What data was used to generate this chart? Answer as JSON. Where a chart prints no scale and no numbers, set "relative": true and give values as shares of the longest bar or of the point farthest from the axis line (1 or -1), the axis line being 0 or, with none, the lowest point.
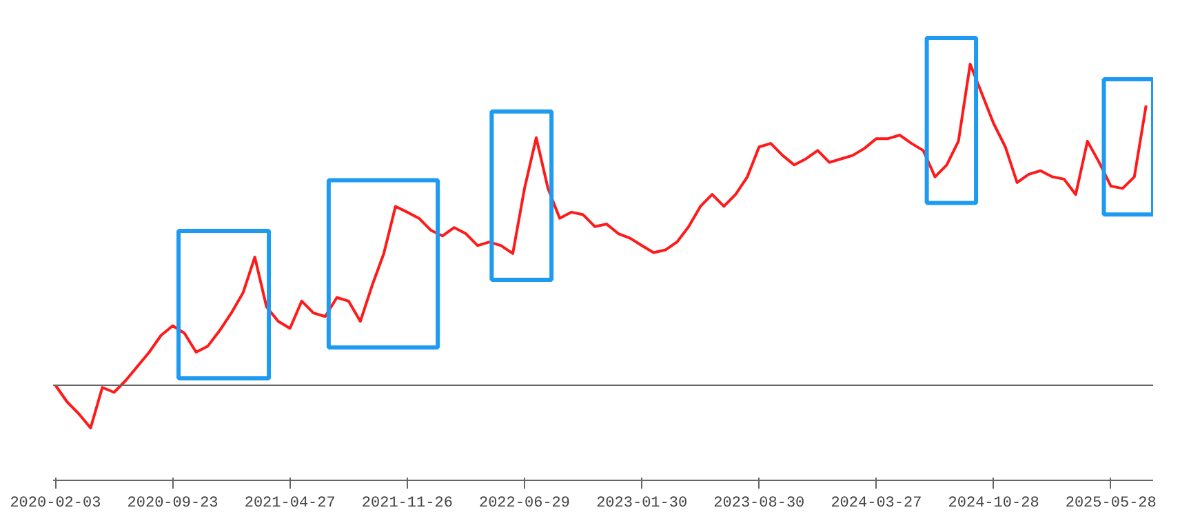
{
  "chart_data": {
    "type": "line",
    "relative": true,
    "categories": [
      "2020-02-03",
      null,
      null,
      null,
      null,
      null,
      null,
      null,
      null,
      null,
      "2020-09-23",
      null,
      null,
      null,
      null,
      null,
      null,
      null,
      null,
      null,
      "2021-04-27",
      null,
      null,
      null,
      null,
      null,
      null,
      null,
      null,
      null,
      "2021-11-26",
      null,
      null,
      null,
      null,
      null,
      null,
      null,
      null,
      null,
      "2022-06-29",
      null,
      null,
      null,
      null,
      null,
      null,
      null,
      null,
      null,
      "2023-01-30",
      null,
      null,
      null,
      null,
      null,
      null,
      null,
      null,
      null,
      "2023-08-30",
      null,
      null,
      null,
      null,
      null,
      null,
      null,
      null,
      null,
      "2024-03-27",
      null,
      null,
      null,
      null,
      null,
      null,
      null,
      null,
      null,
      "2024-10-28",
      null,
      null,
      null,
      null,
      null,
      null,
      null,
      null,
      null,
      "2025-05-28",
      null,
      null,
      null
    ],
    "series": [
      {
        "color": "#ff1a1a",
        "values": [
          0,
          -0.052,
          -0.089,
          -0.133,
          -0.007,
          -0.022,
          0.015,
          0.059,
          0.103,
          0.155,
          0.185,
          0.162,
          0.103,
          0.122,
          0.17,
          0.225,
          0.288,
          0.399,
          0.244,
          0.199,
          0.177,
          0.262,
          0.225,
          0.214,
          0.273,
          0.262,
          0.199,
          0.31,
          0.41,
          0.557,
          0.539,
          0.52,
          0.483,
          0.465,
          0.491,
          0.472,
          0.435,
          0.446,
          0.435,
          0.41,
          0.613,
          0.771,
          0.613,
          0.52,
          0.539,
          0.531,
          0.494,
          0.502,
          0.472,
          0.458,
          0.435,
          0.413,
          0.421,
          0.446,
          0.494,
          0.557,
          0.594,
          0.557,
          0.594,
          0.649,
          0.742,
          0.753,
          0.716,
          0.686,
          0.705,
          0.731,
          0.694,
          0.705,
          0.716,
          0.738,
          0.768,
          0.768,
          0.779,
          0.753,
          0.731,
          0.649,
          0.686,
          0.76,
          1,
          0.908,
          0.815,
          0.742,
          0.631,
          0.657,
          0.668,
          0.649,
          0.642,
          0.594,
          0.76,
          0.694,
          0.62,
          0.613,
          0.649,
          0.871
        ]
      }
    ],
    "marker": "none",
    "line_style": "solid"
  }
}
